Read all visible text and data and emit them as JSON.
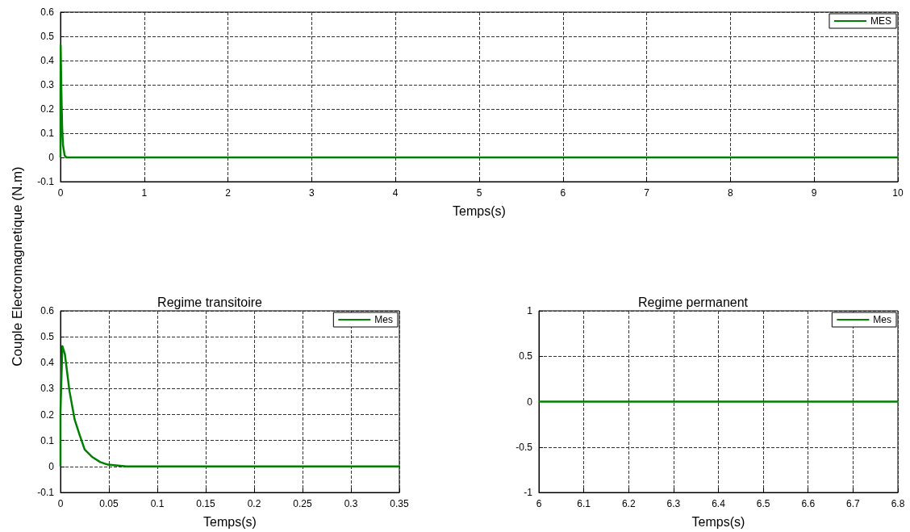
{
  "chart_data": [
    {
      "type": "line",
      "xlabel": "Temps(s)",
      "ylabel": "Couple Electromagnetique (N.m)",
      "legend": "top right",
      "grid": true,
      "line_style": "solid",
      "marker": "none",
      "xlim": [
        0,
        10
      ],
      "xticks": [
        0,
        1,
        2,
        3,
        4,
        5,
        6,
        7,
        8,
        9,
        10
      ],
      "ylim": [
        -0.1,
        0.6
      ],
      "yticks": [
        -0.1,
        0,
        0.1,
        0.2,
        0.3,
        0.4,
        0.5,
        0.6
      ],
      "series": [
        {
          "name": "MES",
          "color": "#008000",
          "x": [
            0,
            0,
            0.002,
            0.01,
            0.02,
            0.03,
            0.05,
            0.07,
            10
          ],
          "values": [
            0,
            0.25,
            0.464,
            0.28,
            0.12,
            0.05,
            0.007,
            0,
            0
          ]
        }
      ]
    },
    {
      "type": "line",
      "title": "Regime transitoire",
      "xlabel": "Temps(s)",
      "legend": "top right",
      "grid": true,
      "line_style": "solid",
      "marker": "none",
      "xlim": [
        0,
        0.35
      ],
      "xticks": [
        0,
        0.05,
        0.1,
        0.15,
        0.2,
        0.25,
        0.3,
        0.35
      ],
      "ylim": [
        -0.1,
        0.6
      ],
      "yticks": [
        -0.1,
        0,
        0.1,
        0.2,
        0.3,
        0.4,
        0.5,
        0.6
      ],
      "series": [
        {
          "name": "Mes",
          "color": "#008000",
          "x": [
            0,
            0,
            0.0019,
            0.0045,
            0.0093,
            0.0146,
            0.02,
            0.025,
            0.033,
            0.041,
            0.049,
            0.068,
            0.35
          ],
          "values": [
            0,
            0.214,
            0.464,
            0.433,
            0.29,
            0.181,
            0.119,
            0.065,
            0.036,
            0.017,
            0.007,
            0,
            0
          ]
        }
      ]
    },
    {
      "type": "line",
      "title": "Regime permanent",
      "xlabel": "Temps(s)",
      "legend": "top right",
      "grid": true,
      "line_style": "solid",
      "marker": "none",
      "xlim": [
        6,
        6.8
      ],
      "xticks": [
        6,
        6.1,
        6.2,
        6.3,
        6.4,
        6.5,
        6.6,
        6.7,
        6.8
      ],
      "ylim": [
        -1,
        1
      ],
      "yticks": [
        -1,
        -0.5,
        0,
        0.5,
        1
      ],
      "series": [
        {
          "name": "Mes",
          "color": "#008000",
          "x": [
            6,
            6.8
          ],
          "values": [
            0,
            0
          ]
        }
      ]
    }
  ]
}
